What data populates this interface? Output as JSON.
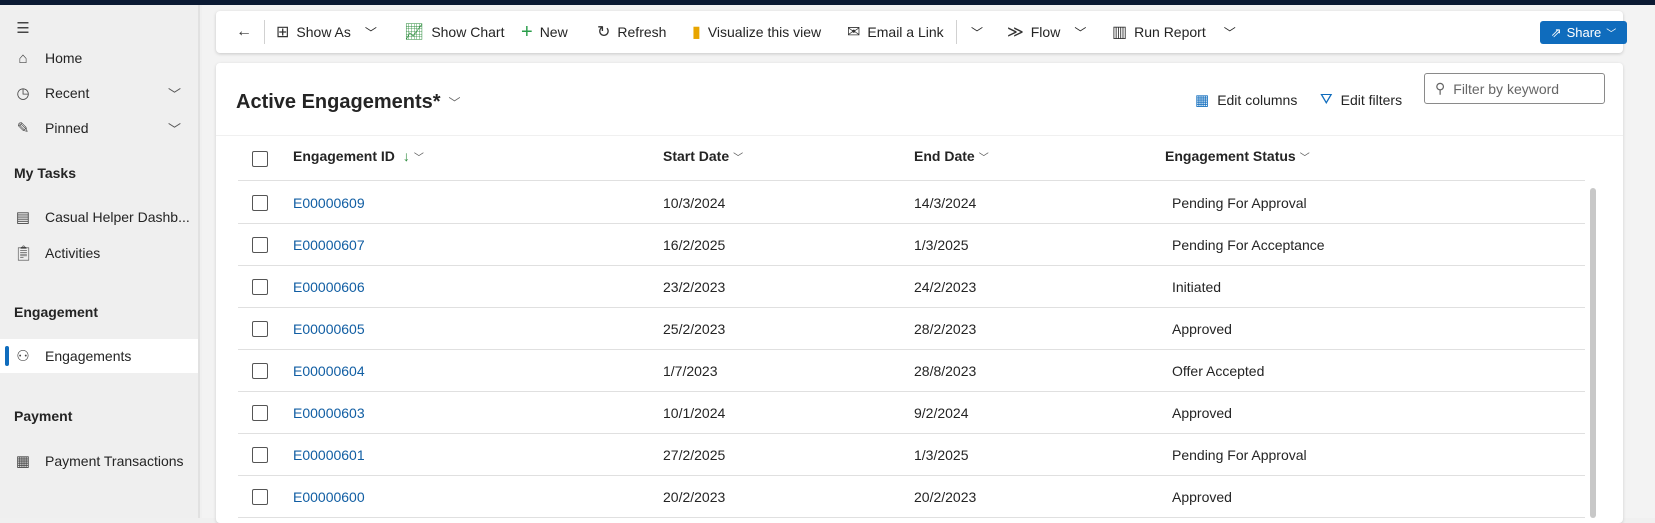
{
  "sidebar": {
    "items": [
      {
        "label": "Home",
        "icon": "home-icon"
      },
      {
        "label": "Recent",
        "icon": "clock-icon"
      },
      {
        "label": "Pinned",
        "icon": "pin-icon"
      }
    ],
    "sections": [
      {
        "title": "My Tasks",
        "items": [
          {
            "label": "Casual Helper Dashb..."
          },
          {
            "label": "Activities"
          }
        ]
      },
      {
        "title": "Engagement",
        "items": [
          {
            "label": "Engagements",
            "selected": true
          }
        ]
      },
      {
        "title": "Payment",
        "items": [
          {
            "label": "Payment Transactions"
          }
        ]
      }
    ]
  },
  "toolbar": {
    "show_as": "Show As",
    "show_chart": "Show Chart",
    "new": "New",
    "refresh": "Refresh",
    "visualize": "Visualize this view",
    "email_link": "Email a Link",
    "flow": "Flow",
    "run_report": "Run Report",
    "share": "Share"
  },
  "view": {
    "title": "Active Engagements*",
    "edit_columns": "Edit columns",
    "edit_filters": "Edit filters",
    "filter_placeholder": "Filter by keyword"
  },
  "grid": {
    "columns": [
      "Engagement ID",
      "Start Date",
      "End Date",
      "Engagement Status"
    ],
    "sort_indicator": "↓",
    "rows": [
      [
        "E00000609",
        "10/3/2024",
        "14/3/2024",
        "Pending For Approval"
      ],
      [
        "E00000607",
        "16/2/2025",
        "1/3/2025",
        "Pending For Acceptance"
      ],
      [
        "E00000606",
        "23/2/2023",
        "24/2/2023",
        "Initiated"
      ],
      [
        "E00000605",
        "25/2/2023",
        "28/2/2023",
        "Approved"
      ],
      [
        "E00000604",
        "1/7/2023",
        "28/8/2023",
        "Offer Accepted"
      ],
      [
        "E00000603",
        "10/1/2024",
        "9/2/2024",
        "Approved"
      ],
      [
        "E00000601",
        "27/2/2025",
        "1/3/2025",
        "Pending For Approval"
      ],
      [
        "E00000600",
        "20/2/2023",
        "20/2/2023",
        "Approved"
      ]
    ]
  },
  "colors": {
    "accent": "#0f6cbd",
    "link": "#115ea3",
    "topbar": "#0b1a33"
  }
}
